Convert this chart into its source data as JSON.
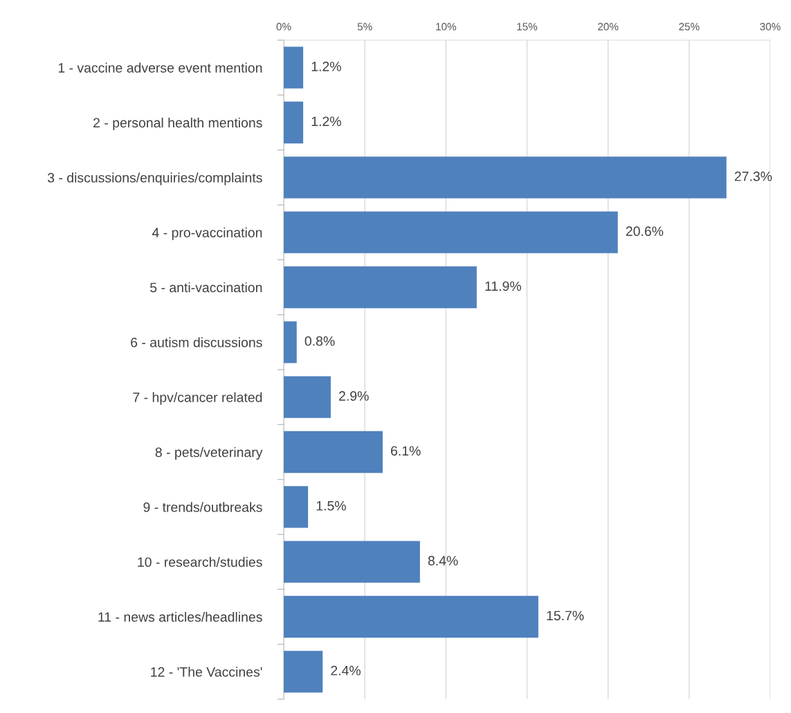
{
  "chart_data": {
    "type": "bar",
    "orientation": "horizontal",
    "categories": [
      "1 - vaccine adverse event mention",
      "2 - personal health mentions",
      "3 - discussions/enquiries/complaints",
      "4 - pro-vaccination",
      "5 - anti-vaccination",
      "6 - autism discussions",
      "7 - hpv/cancer related",
      "8 - pets/veterinary",
      "9 - trends/outbreaks",
      "10 - research/studies",
      "11 - news articles/headlines",
      "12 - 'The Vaccines'"
    ],
    "values": [
      1.2,
      1.2,
      27.3,
      20.6,
      11.9,
      0.8,
      2.9,
      6.1,
      1.5,
      8.4,
      15.7,
      2.4
    ],
    "value_labels": [
      "1.2%",
      "1.2%",
      "27.3%",
      "20.6%",
      "11.9%",
      "0.8%",
      "2.9%",
      "6.1%",
      "1.5%",
      "8.4%",
      "15.7%",
      "2.4%"
    ],
    "color": "#4f81bd",
    "xlim": [
      0,
      30
    ],
    "xticks": [
      {
        "value": 0,
        "label": "0%"
      },
      {
        "value": 5,
        "label": "5%"
      },
      {
        "value": 10,
        "label": "10%"
      },
      {
        "value": 15,
        "label": "15%"
      },
      {
        "value": 20,
        "label": "20%"
      },
      {
        "value": 25,
        "label": "25%"
      },
      {
        "value": 30,
        "label": "30%"
      }
    ],
    "grid": "x"
  }
}
